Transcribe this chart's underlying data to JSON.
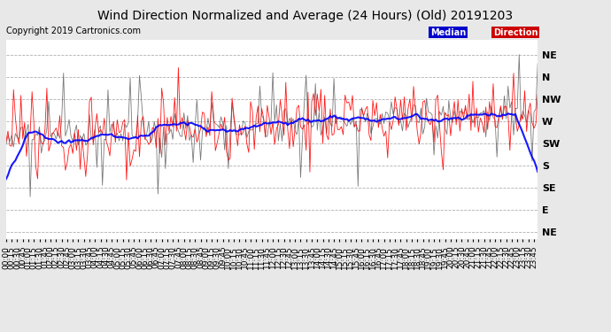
{
  "title": "Wind Direction Normalized and Average (24 Hours) (Old) 20191203",
  "copyright": "Copyright 2019 Cartronics.com",
  "ytick_labels": [
    "NE",
    "N",
    "NW",
    "W",
    "SW",
    "S",
    "SE",
    "E",
    "NE"
  ],
  "ytick_values": [
    360,
    315,
    270,
    225,
    180,
    135,
    90,
    45,
    0
  ],
  "ylim": [
    -15,
    390
  ],
  "ymin": 0,
  "ymax": 360,
  "bg_color": "#e8e8e8",
  "plot_bg": "#ffffff",
  "grid_color": "#b0b0b0",
  "red_color": "#ff0000",
  "dark_color": "#404040",
  "blue_color": "#0000ff",
  "title_fontsize": 10,
  "copyright_fontsize": 7,
  "tick_fontsize": 6.5,
  "ylabel_fontsize": 8
}
